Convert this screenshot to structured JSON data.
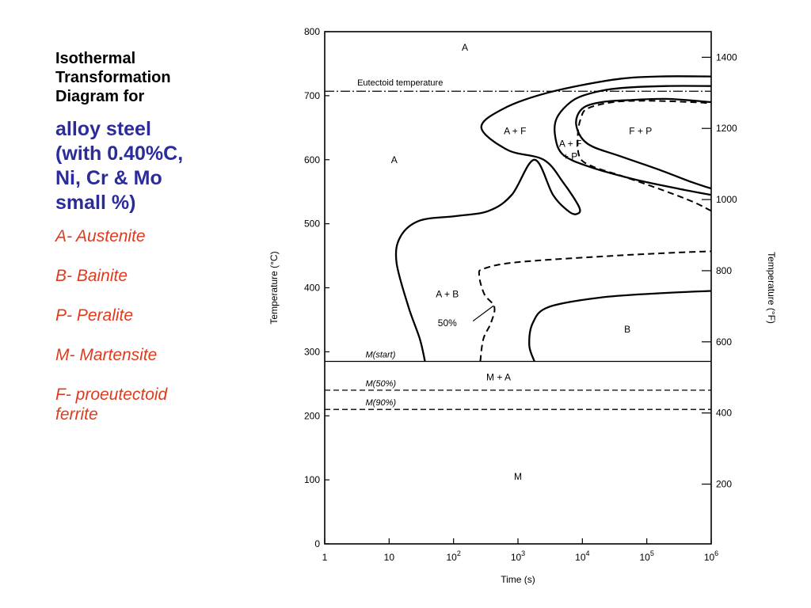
{
  "slide": {
    "heading": "Isothermal\nTransformation\nDiagram for",
    "subheading": "alloy steel\n(with 0.40%C,\nNi, Cr & Mo\nsmall %)",
    "legend": [
      {
        "text": "A- Austenite"
      },
      {
        "text": "B- Bainite"
      },
      {
        "text": "P- Peralite"
      },
      {
        "text": "M- Martensite"
      },
      {
        "text": "F- proeutectoid\nferrite"
      }
    ]
  },
  "colors": {
    "heading": "#000000",
    "subheading": "#2B2B9B",
    "legend": "#E03A1E",
    "plot": "#000000"
  },
  "chart_data": {
    "type": "line",
    "xlabel": "Time (s)",
    "ylabel": "Temperature (°C)",
    "ylabel_right": "Temperature (°F)",
    "x_scale": "log",
    "xlim": [
      1,
      1000000
    ],
    "ylim": [
      0,
      800
    ],
    "x_ticks": [
      1,
      10,
      100,
      1000,
      10000,
      100000,
      1000000
    ],
    "x_tick_labels": [
      {
        "base": "1",
        "exp": ""
      },
      {
        "base": "10",
        "exp": ""
      },
      {
        "base": "10",
        "exp": "2"
      },
      {
        "base": "10",
        "exp": "3"
      },
      {
        "base": "10",
        "exp": "4"
      },
      {
        "base": "10",
        "exp": "5"
      },
      {
        "base": "10",
        "exp": "6"
      }
    ],
    "y_ticks": [
      0,
      100,
      200,
      300,
      400,
      500,
      600,
      700,
      800
    ],
    "y_tick_labels": [
      "0",
      "100",
      "200",
      "300",
      "400",
      "500",
      "600",
      "700",
      "800"
    ],
    "y_right_ticks_f": [
      200,
      400,
      600,
      800,
      1000,
      1200,
      1400
    ],
    "y_right_tick_labels": [
      "200",
      "400",
      "600",
      "800",
      "1000",
      "1200",
      "1400"
    ],
    "grid": false,
    "horizontal_lines": [
      {
        "label": "Eutectoid temperature",
        "y": 707,
        "style": "dashdot"
      },
      {
        "label": "M(start)",
        "y": 285,
        "style": "solid"
      },
      {
        "label": "M(50%)",
        "y": 240,
        "style": "dashed"
      },
      {
        "label": "M(90%)",
        "y": 210,
        "style": "dashed"
      }
    ],
    "curves": [
      {
        "name": "start",
        "style": "solid",
        "points": [
          [
            36,
            285
          ],
          [
            30,
            320
          ],
          [
            20,
            370
          ],
          [
            13,
            440
          ],
          [
            15,
            480
          ],
          [
            30,
            505
          ],
          [
            110,
            512
          ],
          [
            350,
            520
          ],
          [
            800,
            545
          ],
          [
            1800,
            600
          ],
          [
            3500,
            545
          ],
          [
            6000,
            520
          ],
          [
            8000,
            515
          ],
          [
            9000,
            525
          ],
          [
            5000,
            565
          ],
          [
            2500,
            600
          ],
          [
            700,
            615
          ],
          [
            270,
            650
          ],
          [
            600,
            680
          ],
          [
            3000,
            705
          ],
          [
            30000,
            725
          ],
          [
            150000,
            730
          ],
          [
            1000000,
            730
          ]
        ]
      },
      {
        "name": "ferrite-pearlite boundary",
        "style": "solid",
        "points": [
          [
            1000000,
            715
          ],
          [
            200000,
            715
          ],
          [
            40000,
            712
          ],
          [
            15000,
            705
          ],
          [
            7000,
            692
          ],
          [
            4000,
            665
          ],
          [
            3800,
            635
          ],
          [
            5000,
            608
          ],
          [
            12000,
            590
          ],
          [
            60000,
            570
          ],
          [
            300000,
            555
          ],
          [
            1000000,
            545
          ]
        ]
      },
      {
        "name": "pearlite start",
        "style": "solid",
        "points": [
          [
            1000000,
            690
          ],
          [
            200000,
            695
          ],
          [
            50000,
            693
          ],
          [
            20000,
            690
          ],
          [
            10000,
            680
          ],
          [
            8000,
            655
          ],
          [
            12000,
            625
          ],
          [
            40000,
            605
          ],
          [
            150000,
            585
          ],
          [
            500000,
            565
          ],
          [
            1000000,
            555
          ]
        ]
      },
      {
        "name": "pearlite finish",
        "style": "dashed",
        "points": [
          [
            1000000,
            520
          ],
          [
            500000,
            535
          ],
          [
            150000,
            555
          ],
          [
            40000,
            575
          ],
          [
            14000,
            590
          ],
          [
            9000,
            605
          ],
          [
            8500,
            640
          ],
          [
            9500,
            665
          ],
          [
            12000,
            680
          ],
          [
            30000,
            690
          ],
          [
            100000,
            692
          ],
          [
            500000,
            690
          ],
          [
            1000000,
            688
          ]
        ]
      },
      {
        "name": "bainite 50%",
        "style": "dashed",
        "points": [
          [
            260,
            285
          ],
          [
            290,
            320
          ],
          [
            380,
            345
          ],
          [
            430,
            370
          ],
          [
            300,
            390
          ],
          [
            250,
            420
          ],
          [
            300,
            430
          ],
          [
            1000,
            440
          ],
          [
            30000,
            450
          ],
          [
            300000,
            455
          ],
          [
            1000000,
            457
          ]
        ]
      },
      {
        "name": "bainite start",
        "style": "solid",
        "points": [
          [
            1800,
            285
          ],
          [
            1500,
            310
          ],
          [
            1700,
            345
          ],
          [
            3000,
            370
          ],
          [
            20000,
            385
          ],
          [
            200000,
            392
          ],
          [
            1000000,
            395
          ]
        ]
      }
    ],
    "annotations": [
      {
        "text": "A",
        "x": 150,
        "y": 775
      },
      {
        "text": "A",
        "x": 12,
        "y": 600
      },
      {
        "text": "A + F",
        "x": 900,
        "y": 645
      },
      {
        "text": "A + F",
        "x": 6500,
        "y": 625
      },
      {
        "text": "+ P",
        "x": 6500,
        "y": 605
      },
      {
        "text": "F + P",
        "x": 80000,
        "y": 645
      },
      {
        "text": "A + B",
        "x": 80,
        "y": 390
      },
      {
        "text": "50%",
        "x": 80,
        "y": 345
      },
      {
        "text": "B",
        "x": 50000,
        "y": 335
      },
      {
        "text": "M + A",
        "x": 500,
        "y": 260
      },
      {
        "text": "M",
        "x": 1000,
        "y": 105
      }
    ]
  }
}
